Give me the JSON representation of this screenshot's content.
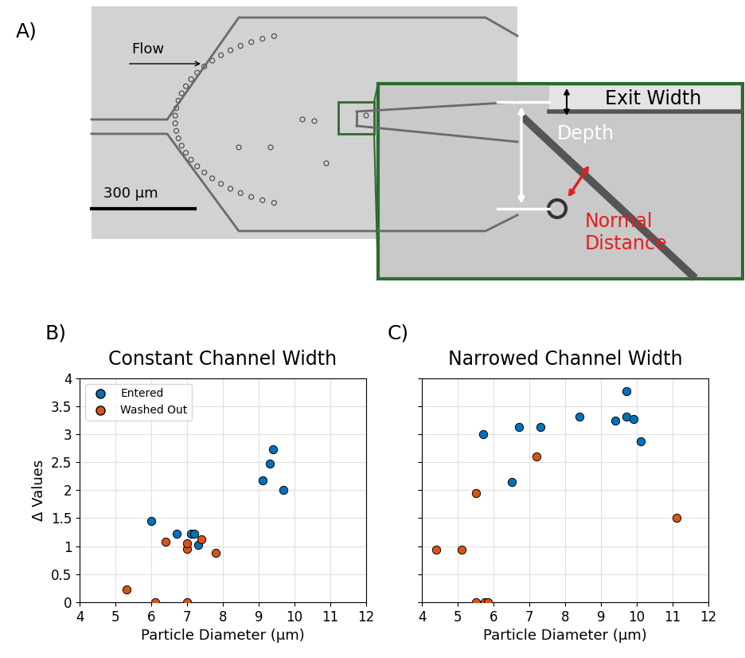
{
  "panel_a": {
    "label": "A)",
    "flow": "Flow",
    "scale_bar": "300 µm",
    "inset": {
      "exit_width": "Exit Width",
      "depth": "Depth",
      "normal_distance": "Normal\nDistance"
    }
  },
  "chart_data": [
    {
      "type": "scatter",
      "panel_label": "B)",
      "title": "Constant Channel Width",
      "xlabel": "Particle Diameter (µm)",
      "ylabel": "Δ Values",
      "xlim": [
        4,
        12
      ],
      "xticks": [
        4,
        5,
        6,
        7,
        8,
        9,
        10,
        11,
        12
      ],
      "ylim": [
        0,
        4
      ],
      "yticks": [
        0,
        0.5,
        1,
        1.5,
        2,
        2.5,
        3,
        3.5,
        4
      ],
      "grid": true,
      "legend": "upper left",
      "series": [
        {
          "name": "Entered",
          "color": "#0072BD",
          "marker": "o",
          "x": [
            6.0,
            6.7,
            7.1,
            7.2,
            7.3,
            9.1,
            9.3,
            9.4,
            9.7
          ],
          "values": [
            1.45,
            1.22,
            1.22,
            1.22,
            1.02,
            2.18,
            2.48,
            2.73,
            2.0
          ]
        },
        {
          "name": "Washed Out",
          "color": "#D95319",
          "marker": "o",
          "x": [
            5.3,
            6.1,
            6.4,
            7.0,
            7.0,
            7.0,
            7.4,
            7.8
          ],
          "values": [
            0.22,
            0.0,
            1.08,
            0.95,
            1.05,
            0.0,
            1.12,
            0.88
          ]
        }
      ]
    },
    {
      "type": "scatter",
      "panel_label": "C)",
      "title": "Narrowed Channel Width",
      "xlabel": "Particle Diameter (µm)",
      "xlim": [
        4,
        12
      ],
      "xticks": [
        4,
        5,
        6,
        7,
        8,
        9,
        10,
        11,
        12
      ],
      "ylim": [
        0,
        4
      ],
      "yticks": [
        0,
        0.5,
        1,
        1.5,
        2,
        2.5,
        3,
        3.5,
        4
      ],
      "grid": true,
      "tick_labels": "x",
      "series": [
        {
          "name": "Entered",
          "color": "#0072BD",
          "marker": "o",
          "x": [
            5.7,
            6.5,
            6.7,
            7.3,
            8.4,
            9.4,
            9.7,
            9.7,
            9.9,
            10.1
          ],
          "values": [
            3.0,
            2.15,
            3.13,
            3.13,
            3.32,
            3.25,
            3.77,
            3.32,
            3.27,
            2.88
          ]
        },
        {
          "name": "Washed Out",
          "color": "#D95319",
          "marker": "o",
          "x": [
            4.4,
            5.1,
            5.5,
            5.5,
            5.75,
            5.85,
            7.2,
            11.1
          ],
          "values": [
            0.94,
            0.94,
            1.95,
            0.0,
            0.0,
            0.0,
            2.6,
            1.5
          ]
        }
      ]
    }
  ]
}
